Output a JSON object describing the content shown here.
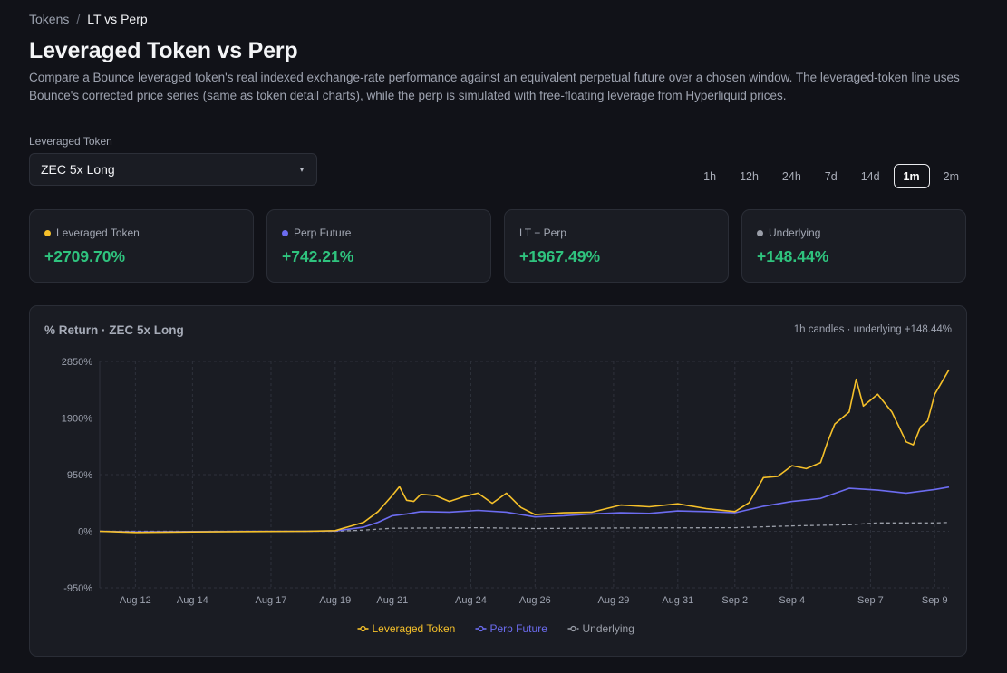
{
  "breadcrumb": {
    "parent": "Tokens",
    "separator": "/",
    "current": "LT vs Perp"
  },
  "header": {
    "title": "Leveraged Token vs Perp",
    "description": "Compare a Bounce leveraged token's real indexed exchange-rate performance against an equivalent perpetual future over a chosen window. The leveraged-token line uses Bounce's corrected price series (same as token detail charts), while the perp is simulated with free-floating leverage from Hyperliquid prices."
  },
  "selector": {
    "label": "Leveraged Token",
    "value": "ZEC 5x Long",
    "caret": "▾"
  },
  "ranges": [
    {
      "label": "1h",
      "active": false
    },
    {
      "label": "12h",
      "active": false
    },
    {
      "label": "24h",
      "active": false
    },
    {
      "label": "7d",
      "active": false
    },
    {
      "label": "14d",
      "active": false
    },
    {
      "label": "1m",
      "active": true
    },
    {
      "label": "2m",
      "active": false
    }
  ],
  "stats": [
    {
      "label": "Leveraged Token",
      "value": "+2709.70%",
      "dot": "#f5c02a"
    },
    {
      "label": "Perp Future",
      "value": "+742.21%",
      "dot": "#6c6cf0"
    },
    {
      "label": "LT − Perp",
      "value": "+1967.49%",
      "dot": ""
    },
    {
      "label": "Underlying",
      "value": "+148.44%",
      "dot": "#9a9ea8"
    }
  ],
  "chart": {
    "title": "% Return · ZEC 5x Long",
    "meta": "1h candles · underlying +148.44%"
  },
  "chart_data": {
    "type": "line",
    "title": "% Return · ZEC 5x Long",
    "ylim": [
      -950,
      2850
    ],
    "yticks": [
      2850,
      1900,
      950,
      0,
      -950
    ],
    "ytick_labels": [
      "2850%",
      "1900%",
      "950%",
      "0%",
      "-950%"
    ],
    "xlim": [
      "Aug 10 18:00",
      "Sep 9 12:00"
    ],
    "xtick_labels": [
      "Aug 12",
      "Aug 14",
      "Aug 17",
      "Aug 19",
      "Aug 21",
      "Aug 24",
      "Aug 26",
      "Aug 29",
      "Aug 31",
      "Sep 2",
      "Sep 4",
      "Sep 7",
      "Sep 9"
    ],
    "xtick_dates": [
      "Aug 12",
      "Aug 14",
      "Aug 16 18:00",
      "Aug 19",
      "Aug 21",
      "Aug 23 18:00",
      "Aug 26",
      "Aug 28 18:00",
      "Aug 31",
      "Sep 2",
      "Sep 4",
      "Sep 6 18:00",
      "Sep 9"
    ],
    "grid": true,
    "legend_position": "bottom",
    "series": [
      {
        "name": "Leveraged Token",
        "color": "#f5c02a",
        "x": [
          "Aug 10 18:00",
          "Aug 12",
          "Aug 14",
          "Aug 16",
          "Aug 18",
          "Aug 19",
          "Aug 20",
          "Aug 20 12:00",
          "Aug 21",
          "Aug 21 06:00",
          "Aug 21 12:00",
          "Aug 21 18:00",
          "Aug 22",
          "Aug 22 12:00",
          "Aug 23",
          "Aug 23 12:00",
          "Aug 24",
          "Aug 24 12:00",
          "Aug 25",
          "Aug 25 12:00",
          "Aug 26",
          "Aug 27",
          "Aug 28",
          "Aug 29",
          "Aug 30",
          "Aug 31",
          "Sep 1",
          "Sep 2",
          "Sep 2 12:00",
          "Sep 3",
          "Sep 3 12:00",
          "Sep 4",
          "Sep 4 12:00",
          "Sep 5",
          "Sep 5 06:00",
          "Sep 5 12:00",
          "Sep 6",
          "Sep 6 06:00",
          "Sep 6 12:00",
          "Sep 7",
          "Sep 7 12:00",
          "Sep 8",
          "Sep 8 06:00",
          "Sep 8 12:00",
          "Sep 8 18:00",
          "Sep 9",
          "Sep 9 12:00"
        ],
        "y": [
          0,
          -20,
          -10,
          -5,
          0,
          10,
          150,
          330,
          600,
          750,
          520,
          500,
          620,
          600,
          500,
          580,
          640,
          470,
          640,
          400,
          280,
          310,
          320,
          440,
          410,
          460,
          380,
          330,
          480,
          900,
          920,
          1100,
          1050,
          1150,
          1500,
          1800,
          2000,
          2550,
          2100,
          2300,
          2000,
          1500,
          1450,
          1750,
          1850,
          2300,
          2710
        ]
      },
      {
        "name": "Perp Future",
        "color": "#6c6cf0",
        "x": [
          "Aug 10 18:00",
          "Aug 12",
          "Aug 14",
          "Aug 16",
          "Aug 18",
          "Aug 19",
          "Aug 20",
          "Aug 20 12:00",
          "Aug 21",
          "Aug 21 12:00",
          "Aug 22",
          "Aug 23",
          "Aug 24",
          "Aug 25",
          "Aug 26",
          "Aug 27",
          "Aug 28",
          "Aug 29",
          "Aug 30",
          "Aug 31",
          "Sep 1",
          "Sep 2",
          "Sep 3",
          "Sep 4",
          "Sep 5",
          "Sep 6",
          "Sep 7",
          "Sep 8",
          "Sep 9",
          "Sep 9 12:00"
        ],
        "y": [
          0,
          -10,
          -5,
          -2,
          0,
          5,
          70,
          150,
          260,
          290,
          330,
          320,
          350,
          320,
          240,
          260,
          290,
          310,
          300,
          340,
          330,
          310,
          420,
          500,
          550,
          720,
          690,
          640,
          700,
          742
        ]
      },
      {
        "name": "Underlying",
        "color": "#9a9ea8",
        "dashed": true,
        "x": [
          "Aug 10 18:00",
          "Aug 14",
          "Aug 19",
          "Aug 20",
          "Aug 21",
          "Aug 24",
          "Aug 26",
          "Aug 29",
          "Sep 2",
          "Sep 4",
          "Sep 6",
          "Sep 7",
          "Sep 9",
          "Sep 9 12:00"
        ],
        "y": [
          0,
          -2,
          0,
          20,
          50,
          60,
          45,
          55,
          60,
          90,
          110,
          140,
          140,
          148
        ]
      }
    ]
  }
}
